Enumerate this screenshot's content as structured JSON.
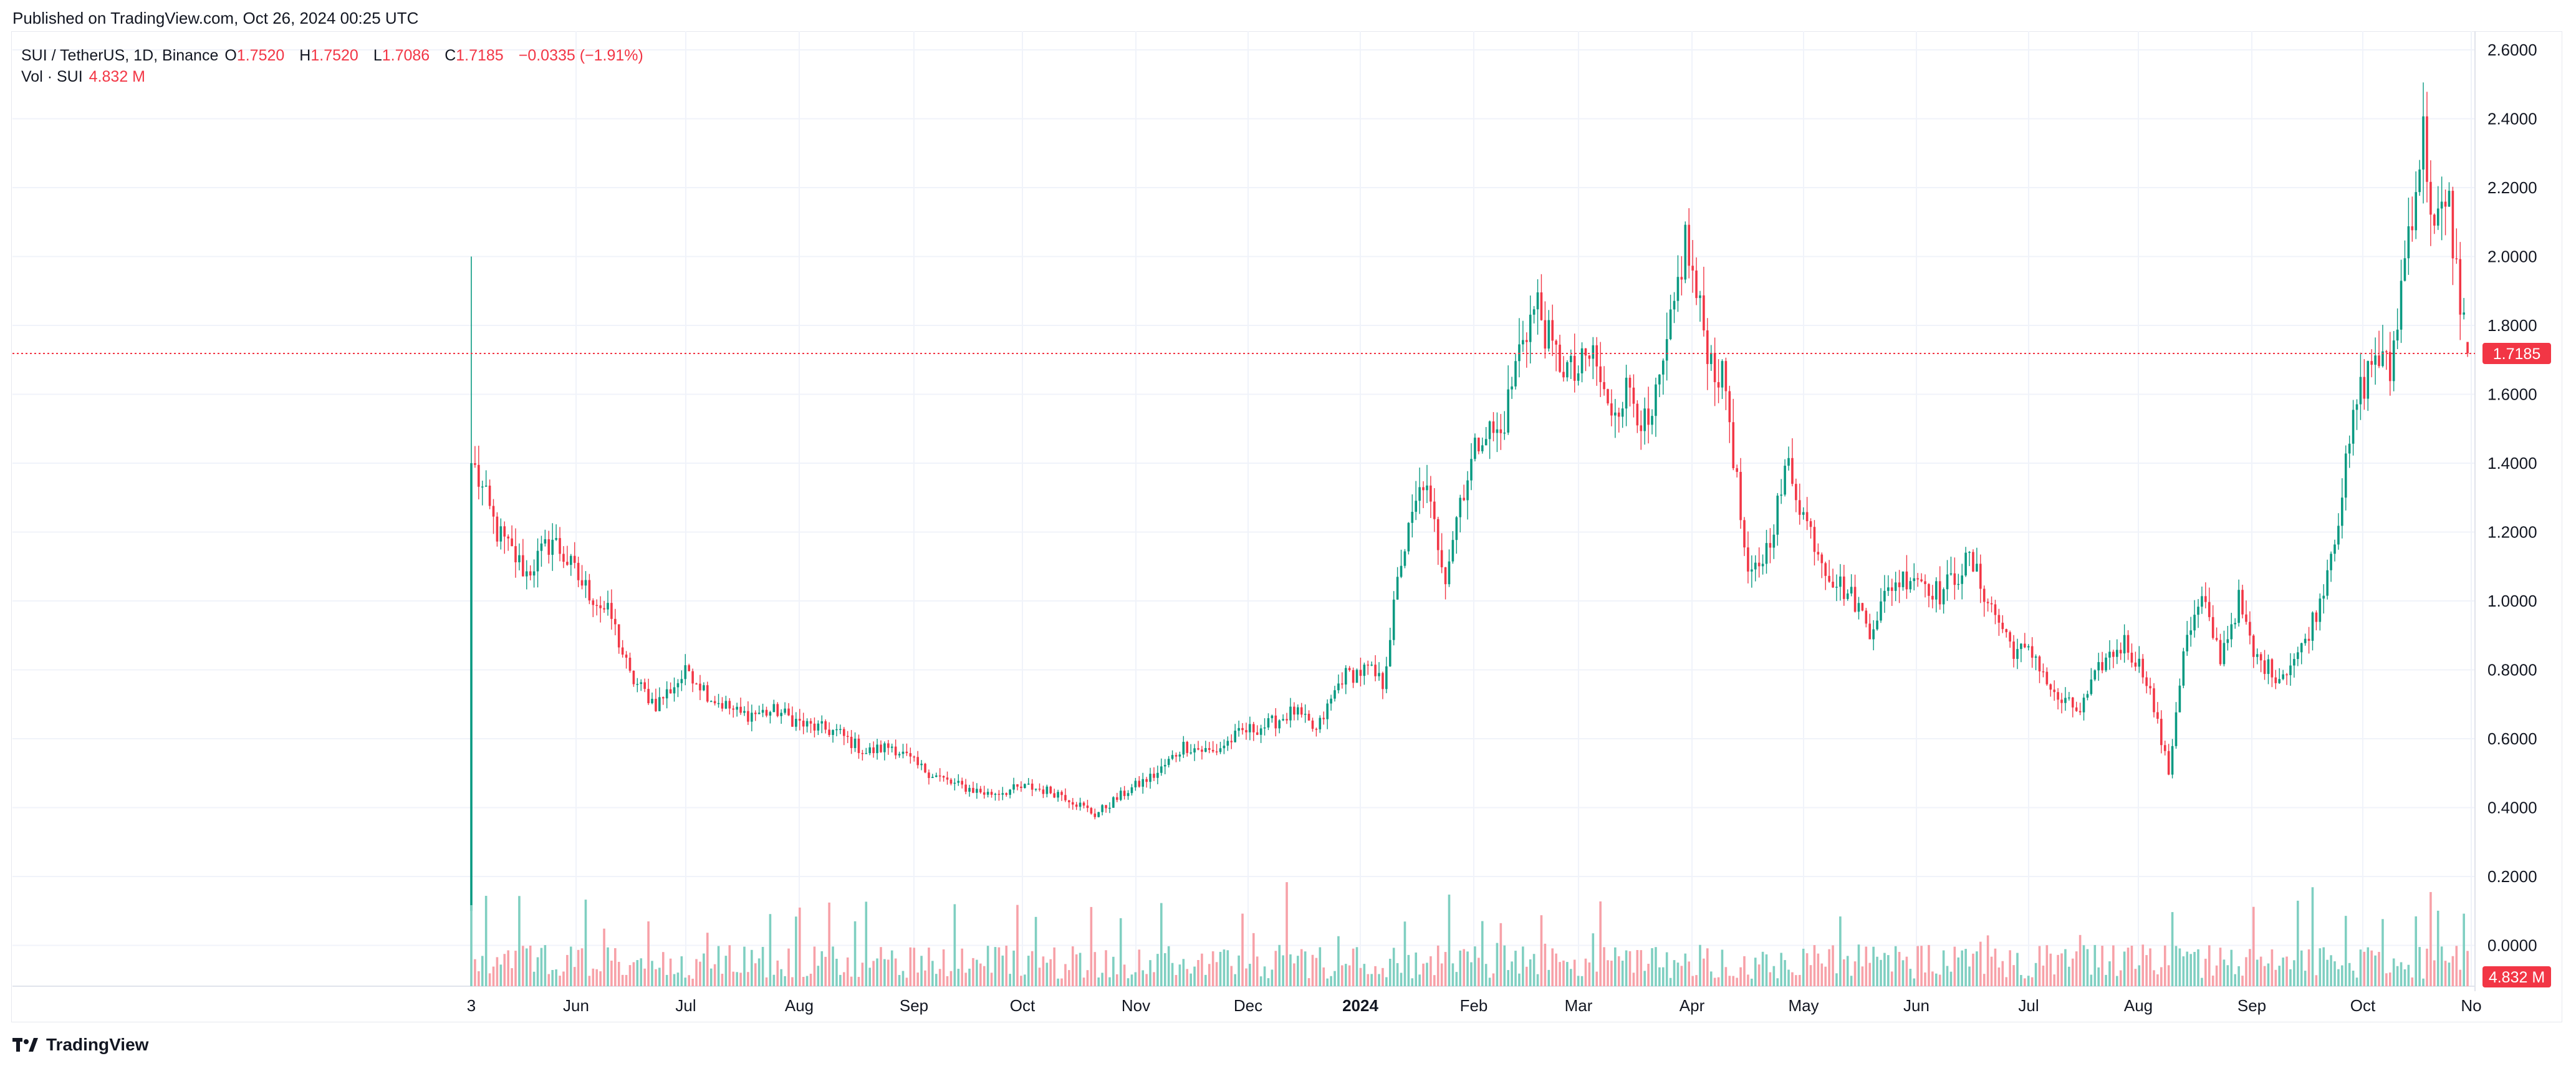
{
  "header": {
    "published": "Published on TradingView.com, Oct 26, 2024 00:25 UTC"
  },
  "legend": {
    "symbol": "SUI / TetherUS, 1D, Binance",
    "o_label": "O",
    "o_value": "1.7520",
    "h_label": "H",
    "h_value": "1.7520",
    "l_label": "L",
    "l_value": "1.7086",
    "c_label": "C",
    "c_value": "1.7185",
    "change": "−0.0335 (−1.91%)",
    "vol_label": "Vol · SUI",
    "vol_value": "4.832 M"
  },
  "footer": {
    "brand": "TradingView"
  },
  "colors": {
    "up": "#089981",
    "down": "#f23645",
    "up_volume": "#7fcfc1",
    "down_volume": "#f7a1a8",
    "grid": "#f0f3fa",
    "axis_text": "#131722"
  },
  "chart_data": {
    "type": "candlestick",
    "symbol": "SUI / TetherUS",
    "interval": "1D",
    "exchange": "Binance",
    "last_price": 1.7185,
    "last_price_label": "1.7185",
    "last_volume_label": "4.832 M",
    "y_axis": {
      "ticks": [
        "2.6000",
        "2.4000",
        "2.2000",
        "2.0000",
        "1.8000",
        "1.6000",
        "1.4000",
        "1.2000",
        "1.0000",
        "0.8000",
        "0.6000",
        "0.4000",
        "0.2000",
        "0.0000"
      ],
      "range": [
        0.0,
        2.6
      ]
    },
    "x_axis": {
      "ticks": [
        "3",
        "Jun",
        "Jul",
        "Aug",
        "Sep",
        "Oct",
        "Nov",
        "Dec",
        "2024",
        "Feb",
        "Mar",
        "Apr",
        "May",
        "Jun",
        "Jul",
        "Aug",
        "Sep",
        "Oct",
        "No"
      ],
      "bold_ticks": [
        "2024"
      ],
      "start_date": "2023-05-03",
      "end_date": "2024-10-26"
    },
    "first_candle": {
      "date": "2023-05-03",
      "open": 0.1,
      "high": 2.0,
      "low": 0.1,
      "close": 1.4
    },
    "anchors": [
      [
        "2023-05-04",
        1.38
      ],
      [
        "2023-05-10",
        1.2
      ],
      [
        "2023-05-18",
        1.08
      ],
      [
        "2023-05-25",
        1.18
      ],
      [
        "2023-06-02",
        1.05
      ],
      [
        "2023-06-10",
        0.95
      ],
      [
        "2023-06-15",
        0.78
      ],
      [
        "2023-06-22",
        0.7
      ],
      [
        "2023-07-01",
        0.8
      ],
      [
        "2023-07-07",
        0.72
      ],
      [
        "2023-07-15",
        0.67
      ],
      [
        "2023-07-25",
        0.68
      ],
      [
        "2023-08-01",
        0.64
      ],
      [
        "2023-08-10",
        0.62
      ],
      [
        "2023-08-18",
        0.56
      ],
      [
        "2023-08-25",
        0.58
      ],
      [
        "2023-09-01",
        0.52
      ],
      [
        "2023-09-10",
        0.47
      ],
      [
        "2023-09-20",
        0.44
      ],
      [
        "2023-10-01",
        0.46
      ],
      [
        "2023-10-10",
        0.44
      ],
      [
        "2023-10-19",
        0.38
      ],
      [
        "2023-10-28",
        0.45
      ],
      [
        "2023-11-05",
        0.5
      ],
      [
        "2023-11-12",
        0.58
      ],
      [
        "2023-11-20",
        0.56
      ],
      [
        "2023-11-28",
        0.62
      ],
      [
        "2023-12-05",
        0.64
      ],
      [
        "2023-12-12",
        0.68
      ],
      [
        "2023-12-18",
        0.62
      ],
      [
        "2023-12-25",
        0.78
      ],
      [
        "2024-01-01",
        0.8
      ],
      [
        "2024-01-05",
        0.76
      ],
      [
        "2024-01-10",
        1.12
      ],
      [
        "2024-01-16",
        1.35
      ],
      [
        "2024-01-22",
        1.08
      ],
      [
        "2024-01-26",
        1.3
      ],
      [
        "2024-02-01",
        1.5
      ],
      [
        "2024-02-06",
        1.48
      ],
      [
        "2024-02-12",
        1.78
      ],
      [
        "2024-02-16",
        1.86
      ],
      [
        "2024-02-20",
        1.72
      ],
      [
        "2024-02-26",
        1.65
      ],
      [
        "2024-03-02",
        1.72
      ],
      [
        "2024-03-06",
        1.55
      ],
      [
        "2024-03-12",
        1.62
      ],
      [
        "2024-03-17",
        1.48
      ],
      [
        "2024-03-22",
        1.72
      ],
      [
        "2024-03-27",
        2.05
      ],
      [
        "2024-03-30",
        1.88
      ],
      [
        "2024-04-03",
        1.7
      ],
      [
        "2024-04-07",
        1.62
      ],
      [
        "2024-04-13",
        1.05
      ],
      [
        "2024-04-18",
        1.15
      ],
      [
        "2024-04-24",
        1.4
      ],
      [
        "2024-04-28",
        1.25
      ],
      [
        "2024-05-05",
        1.08
      ],
      [
        "2024-05-12",
        1.0
      ],
      [
        "2024-05-16",
        0.92
      ],
      [
        "2024-05-22",
        1.05
      ],
      [
        "2024-05-28",
        1.08
      ],
      [
        "2024-06-04",
        1.02
      ],
      [
        "2024-06-12",
        1.12
      ],
      [
        "2024-06-18",
        0.98
      ],
      [
        "2024-06-24",
        0.86
      ],
      [
        "2024-06-30",
        0.84
      ],
      [
        "2024-07-05",
        0.72
      ],
      [
        "2024-07-12",
        0.68
      ],
      [
        "2024-07-18",
        0.82
      ],
      [
        "2024-07-24",
        0.88
      ],
      [
        "2024-07-30",
        0.78
      ],
      [
        "2024-08-05",
        0.5
      ],
      [
        "2024-08-09",
        0.86
      ],
      [
        "2024-08-14",
        1.0
      ],
      [
        "2024-08-19",
        0.84
      ],
      [
        "2024-08-24",
        1.0
      ],
      [
        "2024-08-28",
        0.84
      ],
      [
        "2024-09-04",
        0.78
      ],
      [
        "2024-09-10",
        0.86
      ],
      [
        "2024-09-15",
        1.0
      ],
      [
        "2024-09-20",
        1.25
      ],
      [
        "2024-09-25",
        1.58
      ],
      [
        "2024-09-30",
        1.72
      ],
      [
        "2024-10-04",
        1.66
      ],
      [
        "2024-10-09",
        2.08
      ],
      [
        "2024-10-13",
        2.35
      ],
      [
        "2024-10-16",
        2.08
      ],
      [
        "2024-10-20",
        2.14
      ],
      [
        "2024-10-22",
        1.95
      ],
      [
        "2024-10-25",
        1.75
      ]
    ],
    "last_candle": {
      "date": "2024-10-25",
      "open": 1.752,
      "high": 1.752,
      "low": 1.7086,
      "close": 1.7185
    },
    "volume": {
      "unit": "M",
      "scale_ticks": [
        "0.2000",
        "0.0000"
      ]
    }
  }
}
